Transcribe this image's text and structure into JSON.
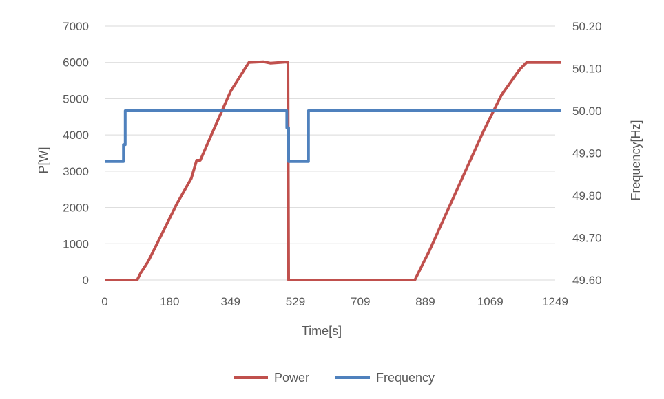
{
  "chart_data": {
    "type": "line",
    "xlabel": "Time[s]",
    "ylabel_left": "P[W]",
    "ylabel_right": "Frequency[Hz]",
    "x_tick_labels": [
      "0",
      "180",
      "349",
      "529",
      "709",
      "889",
      "1069",
      "1249"
    ],
    "x_range": [
      0,
      1249
    ],
    "y_left_ticks": [
      "0",
      "1000",
      "2000",
      "3000",
      "4000",
      "5000",
      "6000",
      "7000"
    ],
    "y_left_range": [
      0,
      7000
    ],
    "y_right_ticks": [
      "49.60",
      "49.70",
      "49.80",
      "49.90",
      "50.00",
      "50.10",
      "50.20"
    ],
    "y_right_range": [
      49.6,
      50.2
    ],
    "grid": "horizontal",
    "legend_position": "bottom",
    "series": [
      {
        "name": "Power",
        "axis": "left",
        "color": "#c0504d",
        "points": [
          [
            0,
            0
          ],
          [
            90,
            0
          ],
          [
            100,
            200
          ],
          [
            120,
            500
          ],
          [
            160,
            1300
          ],
          [
            200,
            2100
          ],
          [
            240,
            2800
          ],
          [
            255,
            3300
          ],
          [
            265,
            3300
          ],
          [
            300,
            4100
          ],
          [
            349,
            5200
          ],
          [
            400,
            6000
          ],
          [
            440,
            6020
          ],
          [
            460,
            5980
          ],
          [
            500,
            6010
          ],
          [
            508,
            6000
          ],
          [
            510,
            0
          ],
          [
            529,
            0
          ],
          [
            709,
            0
          ],
          [
            860,
            0
          ],
          [
            870,
            200
          ],
          [
            900,
            800
          ],
          [
            950,
            1900
          ],
          [
            1000,
            3000
          ],
          [
            1050,
            4100
          ],
          [
            1100,
            5100
          ],
          [
            1150,
            5800
          ],
          [
            1170,
            6000
          ],
          [
            1200,
            6000
          ],
          [
            1249,
            6000
          ],
          [
            1265,
            6000
          ]
        ]
      },
      {
        "name": "Frequency",
        "axis": "right",
        "color": "#4f81bd",
        "points": [
          [
            0,
            49.88
          ],
          [
            52,
            49.88
          ],
          [
            52,
            49.92
          ],
          [
            57,
            49.92
          ],
          [
            57,
            50.0
          ],
          [
            505,
            50.0
          ],
          [
            505,
            49.96
          ],
          [
            510,
            49.96
          ],
          [
            510,
            49.88
          ],
          [
            565,
            49.88
          ],
          [
            565,
            50.0
          ],
          [
            1265,
            50.0
          ]
        ]
      }
    ]
  }
}
